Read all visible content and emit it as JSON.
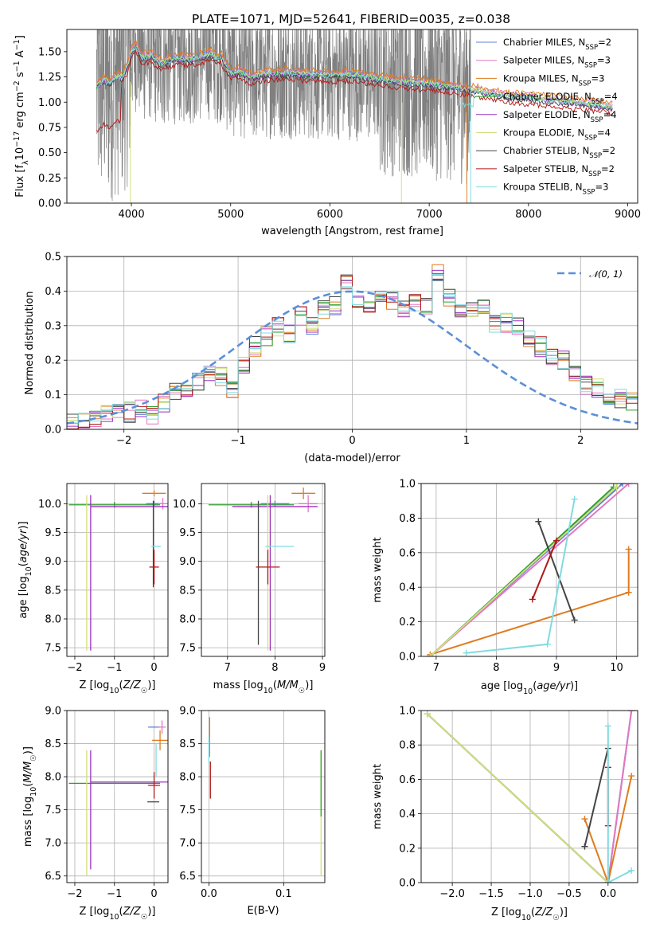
{
  "title": "PLATE=1071, MJD=52641, FIBERID=0035, z=0.038",
  "models": [
    {
      "name": "Chabrier MILES",
      "nssp": "2",
      "color": "#5b7fd6"
    },
    {
      "name": "Salpeter MILES",
      "nssp": "3",
      "color": "#e377c2"
    },
    {
      "name": "Kroupa MILES",
      "nssp": "3",
      "color": "#e07b1f"
    },
    {
      "name": "Chabrier ELODIE",
      "nssp": "4",
      "color": "#2ca02c"
    },
    {
      "name": "Salpeter ELODIE",
      "nssp": "4",
      "color": "#9b30c0"
    },
    {
      "name": "Kroupa ELODIE",
      "nssp": "4",
      "color": "#cfe07a"
    },
    {
      "name": "Chabrier STELIB",
      "nssp": "2",
      "color": "#444444"
    },
    {
      "name": "Salpeter STELIB",
      "nssp": "2",
      "color": "#b01717"
    },
    {
      "name": "Kroupa STELIB",
      "nssp": "3",
      "color": "#7fdbe0"
    }
  ],
  "chart_data": [
    {
      "id": "spectrum",
      "type": "line",
      "xlabel": "wavelength [Angstrom, rest frame]",
      "ylabel": "Flux [f_λ 10^-17 erg cm^-2 s^-1 A^-1]",
      "xlim": [
        3350,
        9100
      ],
      "ylim": [
        0,
        1.72
      ],
      "xticks": [
        4000,
        5000,
        6000,
        7000,
        8000,
        9000
      ],
      "yticks": [
        0.0,
        0.25,
        0.5,
        0.75,
        1.0,
        1.25,
        1.5
      ],
      "legend": "top-right",
      "data_color": "#808080",
      "data_range": [
        3650,
        7420
      ],
      "continuum": {
        "x": [
          3650,
          3720,
          3780,
          3850,
          3900,
          3960,
          4000,
          4050,
          4100,
          4200,
          4300,
          4400,
          4500,
          4600,
          4700,
          4800,
          4860,
          4900,
          5000,
          5100,
          5200,
          5400,
          5600,
          5800,
          6000,
          6200,
          6400,
          6600,
          6800,
          7000,
          7200,
          7400,
          7600,
          7800,
          8000,
          8200,
          8400,
          8600,
          8850
        ],
        "y": [
          1.15,
          1.22,
          1.18,
          1.25,
          1.24,
          1.35,
          1.5,
          1.55,
          1.44,
          1.46,
          1.38,
          1.42,
          1.43,
          1.42,
          1.45,
          1.47,
          1.43,
          1.45,
          1.28,
          1.3,
          1.24,
          1.28,
          1.28,
          1.27,
          1.26,
          1.27,
          1.24,
          1.21,
          1.19,
          1.18,
          1.15,
          1.12,
          1.09,
          1.05,
          1.04,
          1.02,
          1.0,
          0.98,
          0.95
        ]
      }
    },
    {
      "id": "residuals",
      "type": "line",
      "xlabel": "(data-model)/error",
      "ylabel": "Normed distribution",
      "xlim": [
        -2.5,
        2.5
      ],
      "ylim": [
        0,
        0.5
      ],
      "xticks": [
        -2,
        -1,
        0,
        1,
        2
      ],
      "yticks": [
        0.0,
        0.1,
        0.2,
        0.3,
        0.4,
        0.5
      ],
      "legend": "top-right",
      "gaussian_label": "𝒩(0, 1)",
      "gaussian_color": "#5b8fd9",
      "bin_edges_start": -2.5,
      "bin_width": 0.1,
      "hist_base": [
        0.015,
        0.02,
        0.03,
        0.04,
        0.05,
        0.05,
        0.06,
        0.04,
        0.08,
        0.11,
        0.12,
        0.14,
        0.17,
        0.15,
        0.12,
        0.19,
        0.24,
        0.27,
        0.3,
        0.28,
        0.33,
        0.3,
        0.35,
        0.36,
        0.42,
        0.38,
        0.34,
        0.4,
        0.37,
        0.35,
        0.37,
        0.36,
        0.46,
        0.38,
        0.35,
        0.34,
        0.36,
        0.3,
        0.31,
        0.3,
        0.26,
        0.24,
        0.21,
        0.2,
        0.17,
        0.13,
        0.12,
        0.1,
        0.09,
        0.08,
        0.08
      ]
    },
    {
      "id": "age-vs-Z",
      "type": "scatter",
      "xlabel": "Z [log10(Z/Z☉)]",
      "ylabel": "age  [log10(age/yr)]",
      "xlim": [
        -2.2,
        0.35
      ],
      "ylim": [
        7.35,
        10.35
      ],
      "xticks": [
        -2,
        -1,
        0
      ],
      "yticks": [
        7.5,
        8.0,
        8.5,
        9.0,
        9.5,
        10.0
      ],
      "points": [
        {
          "model": 0,
          "x": 0.0,
          "y": 10.0,
          "xerr": 0.2,
          "yerr": 0.05
        },
        {
          "model": 1,
          "x": 0.22,
          "y": 10.0,
          "xerr": 0.12,
          "yerr": 0.1
        },
        {
          "model": 2,
          "x": 0.0,
          "y": 10.18,
          "xerr": 0.3,
          "yerr": 0.05
        },
        {
          "model": 3,
          "x": -1.0,
          "y": 9.98,
          "xerr": 1.15,
          "yerr": 0.05
        },
        {
          "model": 4,
          "x": -0.5,
          "y": 9.95,
          "xerr": 1.1,
          "yerr": 0.0
        },
        {
          "model": 4,
          "x": -1.6,
          "y": 8.8,
          "xerr": 0.0,
          "yerr": 1.35
        },
        {
          "model": 5,
          "x": -1.7,
          "y": 8.8,
          "xerr": 0.0,
          "yerr": 1.35
        },
        {
          "model": 6,
          "x": -0.02,
          "y": 9.3,
          "xerr": 0.0,
          "yerr": 0.75
        },
        {
          "model": 7,
          "x": 0.0,
          "y": 8.9,
          "xerr": 0.12,
          "yerr": 0.3
        },
        {
          "model": 8,
          "x": 0.05,
          "y": 9.26,
          "xerr": 0.12,
          "yerr": 0.0
        }
      ]
    },
    {
      "id": "age-vs-mass",
      "type": "scatter",
      "xlabel": "mass [log10(M/M☉)]",
      "ylabel": "",
      "xlim": [
        6.45,
        9.05
      ],
      "ylim": [
        7.35,
        10.35
      ],
      "xticks": [
        7,
        8,
        9
      ],
      "yticks": [
        7.5,
        8.0,
        8.5,
        9.0,
        9.5,
        10.0
      ],
      "points": [
        {
          "model": 0,
          "x": 8.0,
          "y": 10.0,
          "xerr": 0.3,
          "yerr": 0.05
        },
        {
          "model": 1,
          "x": 8.7,
          "y": 10.0,
          "xerr": 0.2,
          "yerr": 0.15
        },
        {
          "model": 2,
          "x": 8.6,
          "y": 10.18,
          "xerr": 0.25,
          "yerr": 0.1
        },
        {
          "model": 3,
          "x": 7.5,
          "y": 9.98,
          "xerr": 0.9,
          "yerr": 0.05
        },
        {
          "model": 4,
          "x": 8.0,
          "y": 9.95,
          "xerr": 0.9,
          "yerr": 0.0
        },
        {
          "model": 4,
          "x": 7.9,
          "y": 8.8,
          "xerr": 0.0,
          "yerr": 1.35
        },
        {
          "model": 5,
          "x": 7.85,
          "y": 8.8,
          "xerr": 0.0,
          "yerr": 1.35
        },
        {
          "model": 6,
          "x": 7.65,
          "y": 8.8,
          "xerr": 0.0,
          "yerr": 1.25
        },
        {
          "model": 7,
          "x": 7.85,
          "y": 8.9,
          "xerr": 0.25,
          "yerr": 0.3
        },
        {
          "model": 8,
          "x": 8.1,
          "y": 9.26,
          "xerr": 0.3,
          "yerr": 0.0
        }
      ]
    },
    {
      "id": "weight-vs-age",
      "type": "line",
      "xlabel": "age  [log10(age/yr)]",
      "ylabel": "mass weight",
      "xlim": [
        6.75,
        10.35
      ],
      "ylim": [
        0,
        1.0
      ],
      "xticks": [
        7,
        8,
        9,
        10
      ],
      "yticks": [
        0.0,
        0.2,
        0.4,
        0.6,
        0.8,
        1.0
      ],
      "series": [
        {
          "model": 0,
          "x": [
            6.9,
            10.1
          ],
          "y": [
            0.0,
            1.0
          ]
        },
        {
          "model": 1,
          "x": [
            6.9,
            10.2
          ],
          "y": [
            0.0,
            1.0
          ]
        },
        {
          "model": 2,
          "x": [
            6.9,
            10.2,
            10.2
          ],
          "y": [
            0.01,
            0.37,
            0.62
          ]
        },
        {
          "model": 3,
          "x": [
            6.9,
            9.95
          ],
          "y": [
            0.0,
            0.98
          ]
        },
        {
          "model": 4,
          "x": [
            6.9,
            10.0
          ],
          "y": [
            0.0,
            0.98
          ]
        },
        {
          "model": 5,
          "x": [
            6.9,
            10.0
          ],
          "y": [
            0.0,
            0.98
          ]
        },
        {
          "model": 6,
          "x": [
            8.7,
            9.3
          ],
          "y": [
            0.78,
            0.21
          ]
        },
        {
          "model": 7,
          "x": [
            8.6,
            9.0
          ],
          "y": [
            0.33,
            0.67
          ]
        },
        {
          "model": 8,
          "x": [
            7.5,
            8.85,
            9.3
          ],
          "y": [
            0.02,
            0.07,
            0.91
          ]
        }
      ]
    },
    {
      "id": "mass-vs-Z",
      "type": "scatter",
      "xlabel": "Z [log10(Z/Z☉)]",
      "ylabel": "mass [log10(M/M☉)]",
      "xlim": [
        -2.2,
        0.35
      ],
      "ylim": [
        6.4,
        9.0
      ],
      "xticks": [
        -2,
        -1,
        0
      ],
      "yticks": [
        6.5,
        7.0,
        7.5,
        8.0,
        8.5,
        9.0
      ],
      "points": [
        {
          "model": 0,
          "x": 0.0,
          "y": 8.75,
          "xerr": 0.15,
          "yerr": 0.0
        },
        {
          "model": 1,
          "x": 0.2,
          "y": 8.75,
          "xerr": 0.1,
          "yerr": 0.1
        },
        {
          "model": 2,
          "x": 0.15,
          "y": 8.55,
          "xerr": 0.2,
          "yerr": 0.15
        },
        {
          "model": 3,
          "x": -1.0,
          "y": 7.9,
          "xerr": 1.15,
          "yerr": 0.0
        },
        {
          "model": 4,
          "x": -0.5,
          "y": 7.92,
          "xerr": 1.1,
          "yerr": 0.0
        },
        {
          "model": 4,
          "x": -1.6,
          "y": 7.5,
          "xerr": 0.0,
          "yerr": 0.9
        },
        {
          "model": 5,
          "x": -1.7,
          "y": 7.45,
          "xerr": 0.0,
          "yerr": 0.95
        },
        {
          "model": 6,
          "x": -0.02,
          "y": 7.62,
          "xerr": 0.15,
          "yerr": 0.0
        },
        {
          "model": 7,
          "x": 0.0,
          "y": 7.87,
          "xerr": 0.15,
          "yerr": 0.2
        },
        {
          "model": 8,
          "x": 0.05,
          "y": 8.25,
          "xerr": 0.0,
          "yerr": 0.25
        }
      ]
    },
    {
      "id": "mass-vs-ebv",
      "type": "scatter",
      "xlabel": "E(B-V)",
      "ylabel": "",
      "xlim": [
        -0.01,
        0.155
      ],
      "ylim": [
        6.4,
        9.0
      ],
      "xticks": [
        0.0,
        0.1
      ],
      "yticks": [
        6.5,
        7.0,
        7.5,
        8.0,
        8.5,
        9.0
      ],
      "points": [
        {
          "model": 2,
          "x": 0.001,
          "y": 8.6,
          "xerr": 0.0,
          "yerr": 0.3
        },
        {
          "model": 7,
          "x": 0.002,
          "y": 7.95,
          "xerr": 0.0,
          "yerr": 0.28
        },
        {
          "model": 8,
          "x": 0.0,
          "y": 8.4,
          "xerr": 0.0,
          "yerr": 0.2
        },
        {
          "model": 5,
          "x": 0.15,
          "y": 7.45,
          "xerr": 0.0,
          "yerr": 0.95
        },
        {
          "model": 3,
          "x": 0.15,
          "y": 7.9,
          "xerr": 0.0,
          "yerr": 0.5
        }
      ]
    },
    {
      "id": "weight-vs-Z",
      "type": "line",
      "xlabel": "Z [log10(Z/Z☉)]",
      "ylabel": "mass weight",
      "xlim": [
        -2.4,
        0.38
      ],
      "ylim": [
        0,
        1.0
      ],
      "xticks": [
        -2.0,
        -1.5,
        -1.0,
        -0.5,
        0.0
      ],
      "yticks": [
        0.0,
        0.2,
        0.4,
        0.6,
        0.8,
        1.0
      ],
      "series": [
        {
          "model": 0,
          "x": [
            0.0,
            0.3
          ],
          "y": [
            0.0,
            1.0
          ]
        },
        {
          "model": 1,
          "x": [
            0.0,
            0.3
          ],
          "y": [
            0.0,
            1.0
          ]
        },
        {
          "model": 2,
          "x": [
            -0.3,
            0.0,
            0.3
          ],
          "y": [
            0.37,
            0.0,
            0.62
          ]
        },
        {
          "model": 3,
          "x": [
            -2.32,
            0.0
          ],
          "y": [
            0.98,
            0.0
          ]
        },
        {
          "model": 4,
          "x": [
            -2.32,
            0.0
          ],
          "y": [
            0.98,
            0.0
          ]
        },
        {
          "model": 5,
          "x": [
            -2.32,
            0.0
          ],
          "y": [
            0.98,
            0.0
          ]
        },
        {
          "model": 6,
          "x": [
            -0.3,
            0.0
          ],
          "y": [
            0.21,
            0.78
          ]
        },
        {
          "model": 7,
          "x": [
            0.0,
            0.0
          ],
          "y": [
            0.33,
            0.67
          ]
        },
        {
          "model": 8,
          "x": [
            0.3,
            0.0,
            0.0
          ],
          "y": [
            0.07,
            0.0,
            0.91
          ]
        }
      ]
    }
  ]
}
